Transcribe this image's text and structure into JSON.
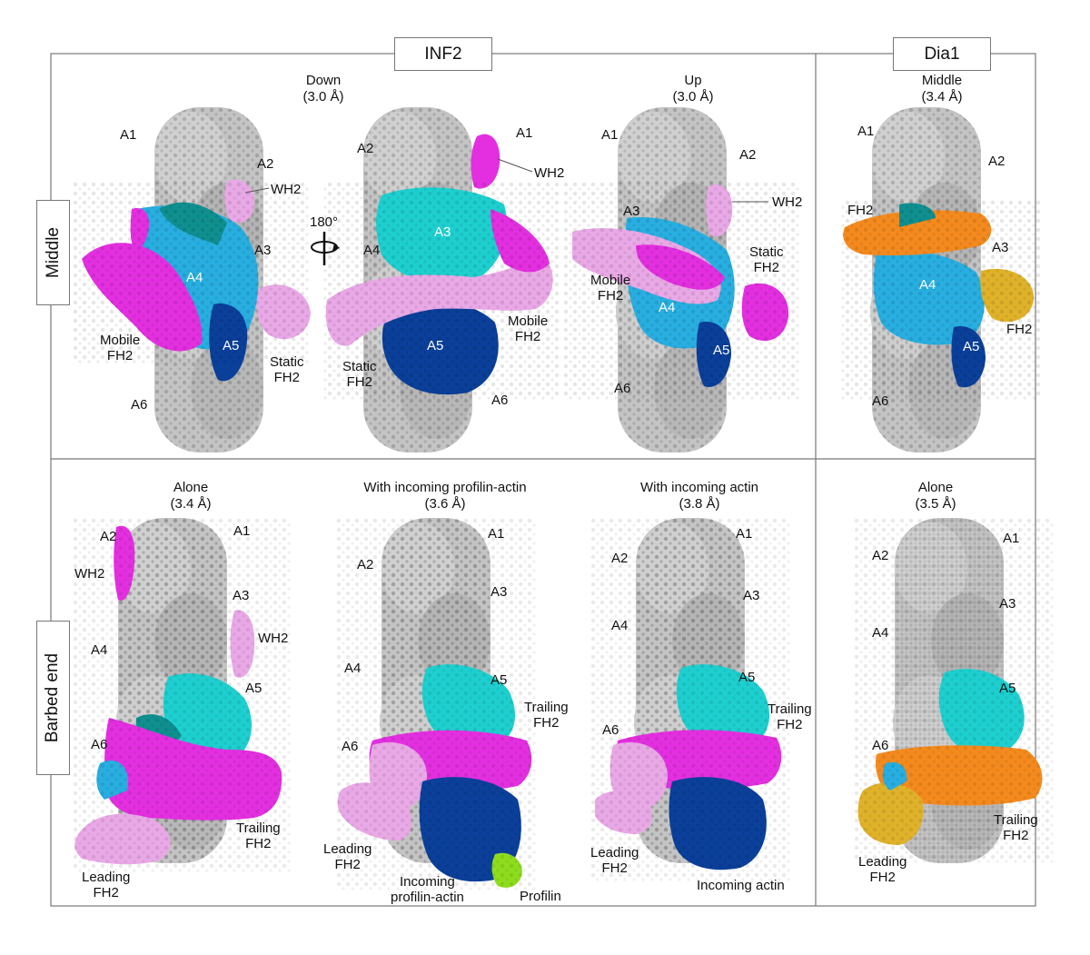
{
  "titles": {
    "inf2": "INF2",
    "dia1": "Dia1",
    "row_middle": "Middle",
    "row_barbed": "Barbed end"
  },
  "panels": {
    "p1": {
      "h1": "Down",
      "h2": "(3.0 Å)"
    },
    "p3": {
      "h1": "Up",
      "h2": "(3.0 Å)"
    },
    "p4": {
      "h1": "Middle",
      "h2": "(3.4 Å)"
    },
    "p5": {
      "h1": "Alone",
      "h2": "(3.4 Å)"
    },
    "p6": {
      "h1": "With incoming profilin-actin",
      "h2": "(3.6 Å)"
    },
    "p7": {
      "h1": "With incoming actin",
      "h2": "(3.8 Å)"
    },
    "p8": {
      "h1": "Alone",
      "h2": "(3.5 Å)"
    }
  },
  "labels": {
    "a1": "A1",
    "a2": "A2",
    "a3": "A3",
    "a4": "A4",
    "a5": "A5",
    "a6": "A6",
    "wh2": "WH2",
    "fh2": "FH2",
    "mobile": "Mobile",
    "static": "Static",
    "leading": "Leading",
    "trailing": "Trailing",
    "incoming": "Incoming",
    "profilin_actin": "profilin-actin",
    "incoming_actin": "Incoming actin",
    "profilin": "Profilin",
    "rotation": "180°"
  },
  "colors": {
    "actin_gray": "#bdbdbd",
    "teal": "#1ecfcf",
    "dark_teal": "#0a8c8c",
    "sky_blue": "#27a9df",
    "navy": "#0a3f9a",
    "magenta": "#e32fe0",
    "light_pink": "#e9a8e6",
    "orange": "#f48a1e",
    "gold": "#e0b22a",
    "lime": "#8edc1e",
    "border": "#777777"
  }
}
